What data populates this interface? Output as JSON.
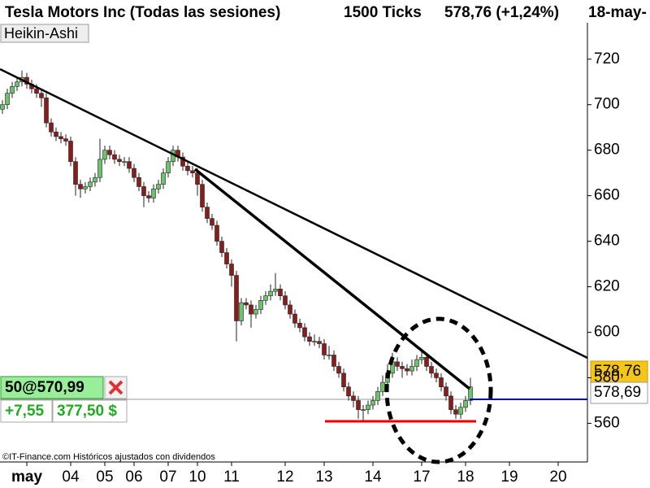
{
  "chart_data": {
    "type": "candlestick",
    "header": {
      "title": "Tesla Motors Inc (Todas las sesiones)",
      "interval": "1500 Ticks",
      "price": "578,76 (+1,24%)",
      "date": "18-may-"
    },
    "style_label": "Heikin-Ashi",
    "footer": "©IT-Finance.com Históricos ajustados con dividendos",
    "last_price_label": "578,76",
    "cursor_price_label": "578,69",
    "order": {
      "label": "50@570,99",
      "pnl": "+7,55",
      "amount": "377,50 $"
    },
    "up_color": "#6ac46a",
    "down_color": "#8b1c1c",
    "xlim": [
      -0.5,
      120
    ],
    "ylim": [
      543,
      746
    ],
    "yticks": [
      560,
      580,
      600,
      620,
      640,
      660,
      680,
      700,
      720
    ],
    "xticks": [
      {
        "value": 5,
        "label": "may"
      },
      {
        "value": 14,
        "label": "04"
      },
      {
        "value": 21,
        "label": "05"
      },
      {
        "value": 27,
        "label": "06"
      },
      {
        "value": 34,
        "label": "07"
      },
      {
        "value": 40,
        "label": "10"
      },
      {
        "value": 47,
        "label": "11"
      },
      {
        "value": 58,
        "label": "12"
      },
      {
        "value": 66,
        "label": "13"
      },
      {
        "value": 76,
        "label": "14"
      },
      {
        "value": 86,
        "label": "17"
      },
      {
        "value": 95,
        "label": "18"
      },
      {
        "value": 104,
        "label": "19"
      },
      {
        "value": 114,
        "label": "20"
      }
    ],
    "candles": [
      [
        698,
        702,
        696,
        700
      ],
      [
        700,
        707,
        698,
        705
      ],
      [
        705,
        710,
        703,
        708
      ],
      [
        708,
        712,
        706,
        710
      ],
      [
        710,
        715,
        708,
        712
      ],
      [
        712,
        714,
        707,
        709
      ],
      [
        709,
        711,
        705,
        707
      ],
      [
        707,
        709,
        703,
        705
      ],
      [
        705,
        707,
        699,
        703
      ],
      [
        703,
        705,
        690,
        692
      ],
      [
        692,
        694,
        686,
        688
      ],
      [
        688,
        690,
        684,
        686
      ],
      [
        686,
        688,
        683,
        685
      ],
      [
        685,
        687,
        682,
        684
      ],
      [
        684,
        686,
        673,
        675
      ],
      [
        675,
        677,
        660,
        665
      ],
      [
        665,
        667,
        659,
        663
      ],
      [
        663,
        666,
        661,
        664
      ],
      [
        664,
        668,
        662,
        666
      ],
      [
        666,
        670,
        664,
        668
      ],
      [
        668,
        685,
        666,
        676
      ],
      [
        676,
        682,
        674,
        680
      ],
      [
        680,
        682,
        676,
        678
      ],
      [
        678,
        680,
        674,
        676
      ],
      [
        676,
        678,
        673,
        675
      ],
      [
        675,
        677,
        673,
        675
      ],
      [
        675,
        677,
        670,
        672
      ],
      [
        672,
        674,
        666,
        668
      ],
      [
        668,
        670,
        662,
        664
      ],
      [
        664,
        666,
        655,
        660
      ],
      [
        660,
        662,
        657,
        659
      ],
      [
        659,
        665,
        657,
        663
      ],
      [
        663,
        667,
        661,
        665
      ],
      [
        665,
        672,
        663,
        670
      ],
      [
        670,
        677,
        668,
        675
      ],
      [
        675,
        682,
        673,
        680
      ],
      [
        680,
        682,
        675,
        677
      ],
      [
        677,
        679,
        671,
        673
      ],
      [
        673,
        675,
        669,
        671
      ],
      [
        671,
        673,
        668,
        670
      ],
      [
        670,
        672,
        660,
        665
      ],
      [
        665,
        667,
        653,
        655
      ],
      [
        655,
        657,
        648,
        650
      ],
      [
        650,
        652,
        645,
        647
      ],
      [
        647,
        649,
        638,
        640
      ],
      [
        640,
        642,
        633,
        635
      ],
      [
        635,
        637,
        628,
        630
      ],
      [
        630,
        632,
        620,
        625
      ],
      [
        625,
        627,
        596,
        605
      ],
      [
        605,
        615,
        603,
        613
      ],
      [
        613,
        615,
        610,
        612
      ],
      [
        612,
        614,
        602,
        608
      ],
      [
        608,
        612,
        606,
        610
      ],
      [
        610,
        616,
        608,
        614
      ],
      [
        614,
        618,
        612,
        616
      ],
      [
        616,
        621,
        614,
        618
      ],
      [
        618,
        626,
        616,
        619
      ],
      [
        619,
        621,
        614,
        616
      ],
      [
        616,
        618,
        610,
        612
      ],
      [
        612,
        614,
        606,
        608
      ],
      [
        608,
        610,
        602,
        604
      ],
      [
        604,
        606,
        600,
        602
      ],
      [
        602,
        604,
        596,
        598
      ],
      [
        598,
        600,
        594,
        596
      ],
      [
        596,
        599,
        594,
        596
      ],
      [
        596,
        598,
        593,
        595
      ],
      [
        595,
        597,
        588,
        590
      ],
      [
        590,
        594,
        588,
        590
      ],
      [
        590,
        592,
        583,
        585
      ],
      [
        585,
        587,
        580,
        582
      ],
      [
        582,
        584,
        574,
        576
      ],
      [
        576,
        578,
        570,
        572
      ],
      [
        572,
        574,
        567,
        570
      ],
      [
        570,
        572,
        562,
        566
      ],
      [
        566,
        568,
        561,
        566
      ],
      [
        566,
        570,
        564,
        568
      ],
      [
        568,
        572,
        566,
        570
      ],
      [
        570,
        576,
        568,
        574
      ],
      [
        574,
        581,
        572,
        578
      ],
      [
        578,
        586,
        576,
        582
      ],
      [
        582,
        591,
        580,
        587
      ],
      [
        587,
        589,
        583,
        585
      ],
      [
        585,
        587,
        580,
        584
      ],
      [
        584,
        586,
        581,
        583
      ],
      [
        583,
        588,
        581,
        585
      ],
      [
        585,
        590,
        583,
        588
      ],
      [
        588,
        592,
        586,
        589
      ],
      [
        589,
        591,
        583,
        585
      ],
      [
        585,
        587,
        580,
        582
      ],
      [
        582,
        584,
        578,
        580
      ],
      [
        580,
        582,
        574,
        576
      ],
      [
        576,
        578,
        570,
        572
      ],
      [
        572,
        574,
        564,
        566
      ],
      [
        566,
        568,
        562,
        564
      ],
      [
        564,
        569,
        562,
        567
      ],
      [
        567,
        572,
        565,
        570
      ],
      [
        570,
        580,
        568,
        576
      ]
    ]
  }
}
